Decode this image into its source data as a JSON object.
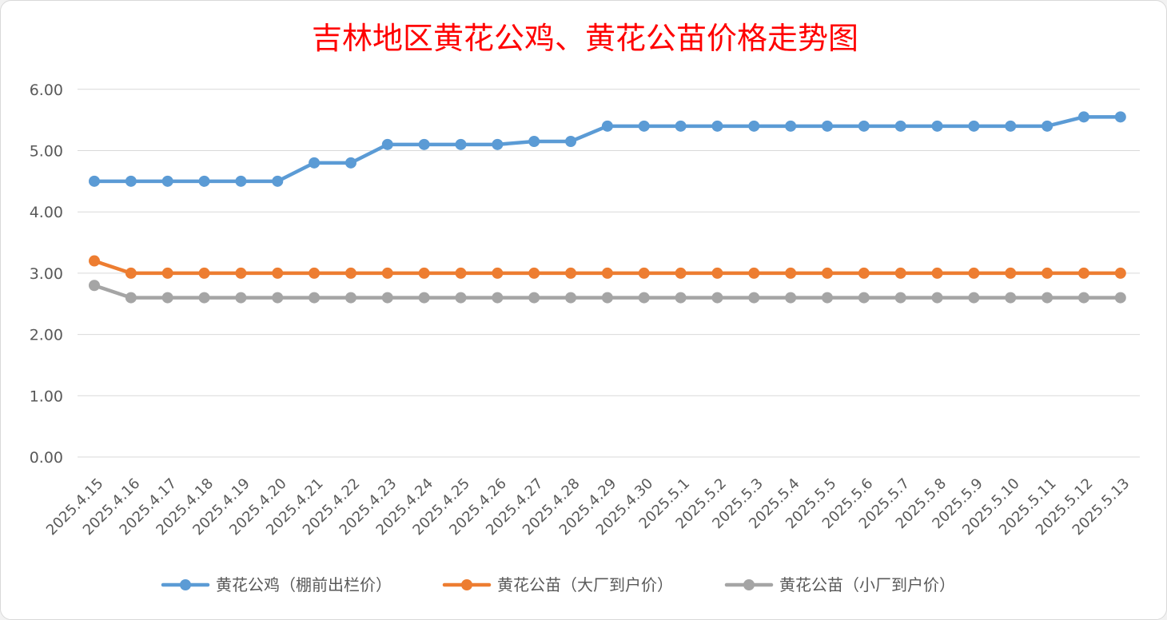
{
  "chart_data": {
    "type": "line",
    "title": "吉林地区黄花公鸡、黄花公苗价格走势图",
    "xlabel": "",
    "ylabel": "",
    "ylim": [
      0,
      6
    ],
    "yticks": [
      "0.00",
      "1.00",
      "2.00",
      "3.00",
      "4.00",
      "5.00",
      "6.00"
    ],
    "grid": true,
    "legend_position": "bottom",
    "categories": [
      "2025.4.15",
      "2025.4.16",
      "2025.4.17",
      "2025.4.18",
      "2025.4.19",
      "2025.4.20",
      "2025.4.21",
      "2025.4.22",
      "2025.4.23",
      "2025.4.24",
      "2025.4.25",
      "2025.4.26",
      "2025.4.27",
      "2025.4.28",
      "2025.4.29",
      "2025.4.30",
      "2025.5.1",
      "2025.5.2",
      "2025.5.3",
      "2025.5.4",
      "2025.5.5",
      "2025.5.6",
      "2025.5.7",
      "2025.5.8",
      "2025.5.9",
      "2025.5.10",
      "2025.5.11",
      "2025.5.12",
      "2025.5.13"
    ],
    "series": [
      {
        "name": "黄花公鸡（棚前出栏价）",
        "color": "#5b9bd5",
        "values": [
          4.5,
          4.5,
          4.5,
          4.5,
          4.5,
          4.5,
          4.8,
          4.8,
          5.1,
          5.1,
          5.1,
          5.1,
          5.15,
          5.15,
          5.4,
          5.4,
          5.4,
          5.4,
          5.4,
          5.4,
          5.4,
          5.4,
          5.4,
          5.4,
          5.4,
          5.4,
          5.4,
          5.55,
          5.55
        ]
      },
      {
        "name": "黄花公苗（大厂到户价）",
        "color": "#ed7d31",
        "values": [
          3.2,
          3.0,
          3.0,
          3.0,
          3.0,
          3.0,
          3.0,
          3.0,
          3.0,
          3.0,
          3.0,
          3.0,
          3.0,
          3.0,
          3.0,
          3.0,
          3.0,
          3.0,
          3.0,
          3.0,
          3.0,
          3.0,
          3.0,
          3.0,
          3.0,
          3.0,
          3.0,
          3.0,
          3.0
        ]
      },
      {
        "name": "黄花公苗（小厂到户价）",
        "color": "#a5a5a5",
        "values": [
          2.8,
          2.6,
          2.6,
          2.6,
          2.6,
          2.6,
          2.6,
          2.6,
          2.6,
          2.6,
          2.6,
          2.6,
          2.6,
          2.6,
          2.6,
          2.6,
          2.6,
          2.6,
          2.6,
          2.6,
          2.6,
          2.6,
          2.6,
          2.6,
          2.6,
          2.6,
          2.6,
          2.6,
          2.6
        ]
      }
    ]
  }
}
